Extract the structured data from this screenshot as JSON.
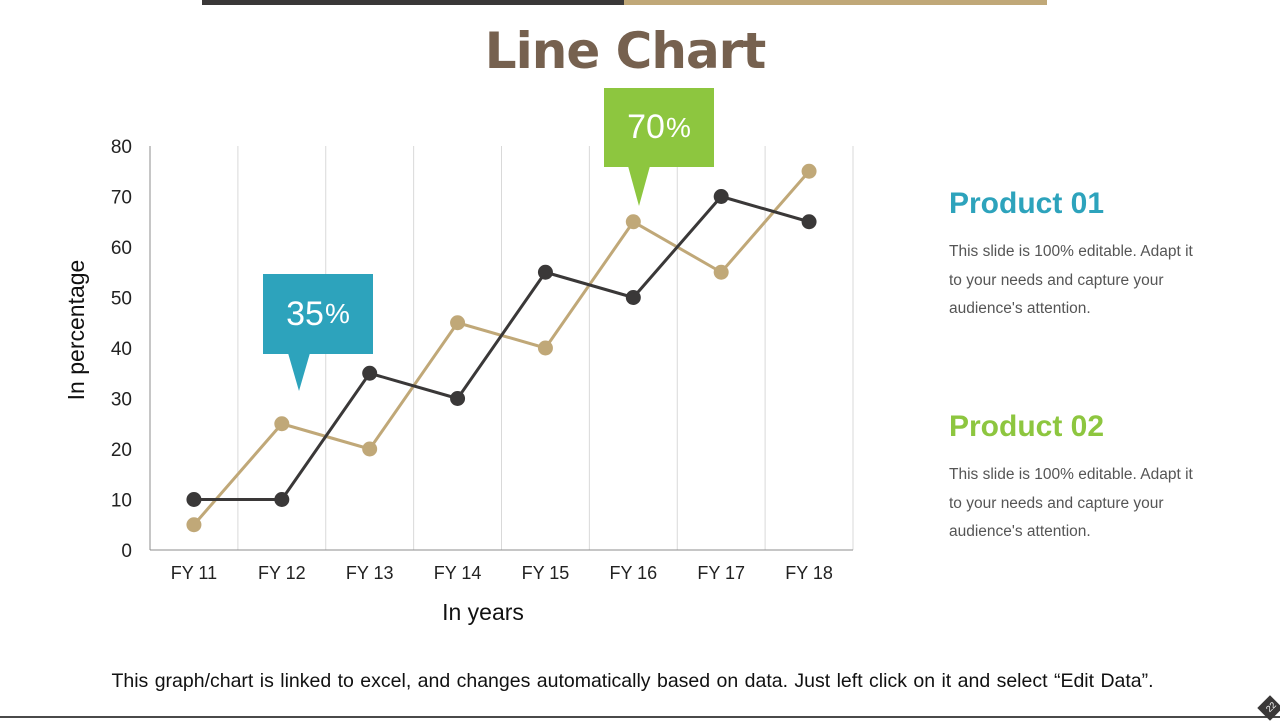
{
  "header": {
    "title": "Line Chart"
  },
  "colors": {
    "series_dark": "#3a3838",
    "series_tan": "#c0a878",
    "accent_blue": "#2da3bc",
    "accent_green": "#8dc63f",
    "title_brown": "#76614f"
  },
  "callouts": {
    "first": {
      "value": "35",
      "unit": "%"
    },
    "second": {
      "value": "70",
      "unit": "%"
    }
  },
  "legend_panel": {
    "product1": {
      "title": "Product 01",
      "description": "This slide is 100% editable. Adapt it to your needs and capture your audience's attention."
    },
    "product2": {
      "title": "Product 02",
      "description": "This slide is 100% editable. Adapt it to your needs and capture your audience's attention."
    }
  },
  "footer": {
    "note": "This graph/chart is linked to excel, and changes automatically based on data. Just left click on it and select “Edit Data”.",
    "slide_number": "22"
  },
  "chart_data": {
    "type": "line",
    "title": "Line Chart",
    "xlabel": "In years",
    "ylabel": "In percentage",
    "categories": [
      "FY 11",
      "FY 12",
      "FY 13",
      "FY 14",
      "FY 15",
      "FY 16",
      "FY 17",
      "FY 18"
    ],
    "series": [
      {
        "values": [
          10,
          10,
          35,
          30,
          55,
          50,
          70,
          65
        ],
        "color": "#3a3838"
      },
      {
        "values": [
          5,
          25,
          20,
          45,
          40,
          65,
          55,
          75
        ],
        "color": "#c0a878"
      }
    ],
    "ylim": [
      0,
      80
    ],
    "yticks": [
      0,
      10,
      20,
      30,
      40,
      50,
      60,
      70,
      80
    ],
    "grid": "vertical",
    "legend": "none"
  }
}
